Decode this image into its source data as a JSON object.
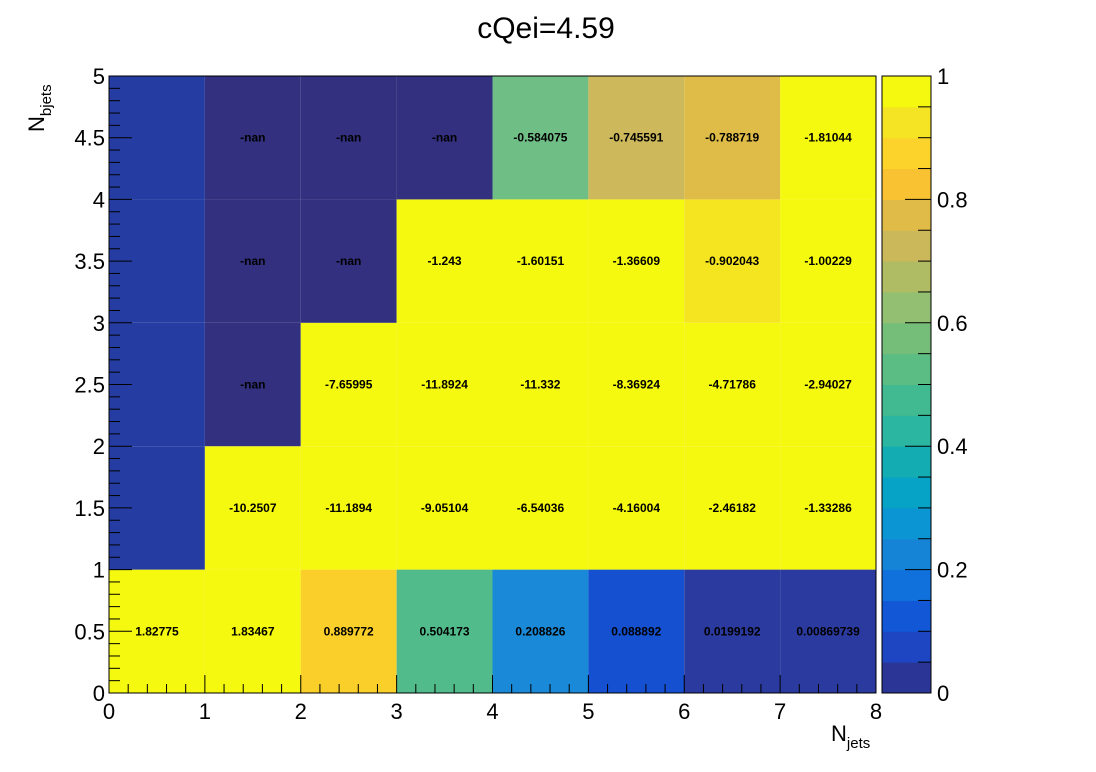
{
  "chart_data": {
    "type": "heatmap",
    "title": "cQei=4.59",
    "xlabel": "N",
    "xlabel_sub": "jets",
    "ylabel": "N",
    "ylabel_sub": "bjets",
    "xlim": [
      0,
      8
    ],
    "ylim": [
      0,
      5
    ],
    "x_ticks": [
      "0",
      "1",
      "2",
      "3",
      "4",
      "5",
      "6",
      "7",
      "8"
    ],
    "y_ticks": [
      "0",
      "0.5",
      "1",
      "1.5",
      "2",
      "2.5",
      "3",
      "3.5",
      "4",
      "4.5",
      "5"
    ],
    "zlim": [
      0,
      1
    ],
    "z_ticks": [
      "0",
      "0.2",
      "0.4",
      "0.6",
      "0.8",
      "1"
    ],
    "x_bins": [
      [
        0,
        1
      ],
      [
        1,
        2
      ],
      [
        2,
        3
      ],
      [
        3,
        4
      ],
      [
        4,
        5
      ],
      [
        5,
        6
      ],
      [
        6,
        7
      ],
      [
        7,
        8
      ]
    ],
    "y_bins": [
      [
        0,
        1
      ],
      [
        1,
        2
      ],
      [
        2,
        3
      ],
      [
        3,
        4
      ],
      [
        4,
        5
      ]
    ],
    "labels": [
      [
        "1.82775",
        "1.83467",
        "0.889772",
        "0.504173",
        "0.208826",
        "0.088892",
        "0.0199192",
        "0.00869739"
      ],
      [
        "",
        "-10.2507",
        "-11.1894",
        "-9.05104",
        "-6.54036",
        "-4.16004",
        "-2.46182",
        "-1.33286"
      ],
      [
        "",
        "-nan",
        "-7.65995",
        "-11.8924",
        "-11.332",
        "-8.36924",
        "-4.71786",
        "-2.94027"
      ],
      [
        "",
        "-nan",
        "-nan",
        "-1.243",
        "-1.60151",
        "-1.36609",
        "-0.902043",
        "-1.00229"
      ],
      [
        "",
        "-nan",
        "-nan",
        "-nan",
        "-0.584075",
        "-0.745591",
        "-0.788719",
        "-1.81044"
      ]
    ],
    "colors": [
      [
        "#f5f80f",
        "#f5f80f",
        "#fbcf2a",
        "#52bb8b",
        "#1a8ad8",
        "#1450d0",
        "#2a3a9f",
        "#2a3a9f"
      ],
      [
        "#253da2",
        "#f5f80f",
        "#f5f80f",
        "#f5f80f",
        "#f5f80f",
        "#f5f80f",
        "#f5f80f",
        "#f5f80f"
      ],
      [
        "#253da2",
        "#32307f",
        "#f5f80f",
        "#f5f80f",
        "#f5f80f",
        "#f5f80f",
        "#f5f80f",
        "#f5f80f"
      ],
      [
        "#253da2",
        "#32307f",
        "#32307f",
        "#f5f80f",
        "#f5f80f",
        "#f5f80f",
        "#f5e521",
        "#f5f80f"
      ],
      [
        "#253da2",
        "#32307f",
        "#32307f",
        "#32307f",
        "#6fbe86",
        "#cdb85b",
        "#dfbb47",
        "#f5f80f"
      ]
    ],
    "palette": [
      "#2a3596",
      "#1e46c2",
      "#1157d6",
      "#1171dc",
      "#1684d6",
      "#0b95d2",
      "#06a3c6",
      "#14acb3",
      "#2ab6a1",
      "#41b991",
      "#5bbd83",
      "#74be7a",
      "#92bf72",
      "#b0bc64",
      "#cbb85a",
      "#e1bb47",
      "#f8c232",
      "#fcd32a",
      "#f5e424",
      "#f5f80f"
    ]
  }
}
